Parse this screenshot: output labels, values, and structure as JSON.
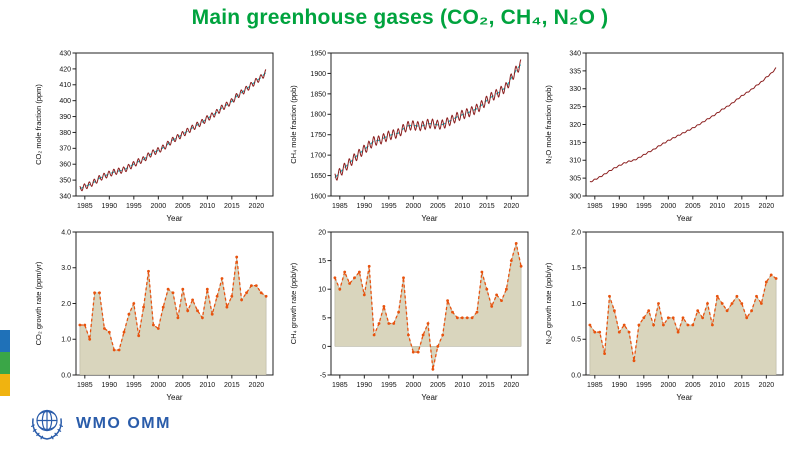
{
  "title": "Main greenhouse gases (CO₂, CH₄, N₂O )",
  "colors": {
    "title_green": "#00a33e",
    "wmo_blue": "#2a5caa",
    "mole_line_red": "#8b1f1f",
    "trend_cyan": "#1ab8c4",
    "growth_line_orange": "#e8520d",
    "growth_fill_khaki": "#d9d5bd"
  },
  "accent_bar": {
    "colors": [
      "#1f71b8",
      "#3aa647",
      "#f0b310"
    ]
  },
  "footer": {
    "logo_text": "WMO OMM"
  },
  "chart_data": [
    {
      "type": "line",
      "name": "co2-mole-fraction",
      "style": "monthly-with-trend",
      "title": "",
      "xlabel": "Year",
      "ylabel": "CO₂ mole fraction (ppm)",
      "xlim": [
        1983.2,
        2023.4
      ],
      "ylim": [
        340,
        430
      ],
      "xticks": [
        1985,
        1990,
        1995,
        2000,
        2005,
        2010,
        2015,
        2020
      ],
      "yticks": [
        340,
        350,
        360,
        370,
        380,
        390,
        400,
        410,
        420,
        430
      ],
      "ydecimals": 0,
      "seasonal_amplitude": 1.8,
      "line_color": "#8b1f1f",
      "trend_color": "#1ab8c4",
      "x": [
        1984,
        1985,
        1986,
        1987,
        1988,
        1989,
        1990,
        1991,
        1992,
        1993,
        1994,
        1995,
        1996,
        1997,
        1998,
        1999,
        2000,
        2001,
        2002,
        2003,
        2004,
        2005,
        2006,
        2007,
        2008,
        2009,
        2010,
        2011,
        2012,
        2013,
        2014,
        2015,
        2016,
        2017,
        2018,
        2019,
        2020,
        2021,
        2022
      ],
      "values": [
        344.6,
        345.9,
        347.2,
        348.9,
        351.2,
        352.6,
        353.9,
        355.1,
        355.8,
        356.5,
        358.2,
        360.0,
        361.8,
        363.0,
        365.5,
        367.4,
        368.7,
        370.4,
        372.8,
        375.3,
        377.0,
        378.9,
        381.0,
        382.9,
        384.8,
        386.5,
        388.9,
        390.6,
        392.8,
        395.5,
        397.4,
        399.6,
        402.9,
        405.1,
        407.4,
        409.9,
        412.4,
        414.7,
        417.9
      ]
    },
    {
      "type": "line",
      "name": "ch4-mole-fraction",
      "style": "monthly-with-trend",
      "title": "",
      "xlabel": "Year",
      "ylabel": "CH₄ mole fraction (ppb)",
      "xlim": [
        1983.2,
        2023.4
      ],
      "ylim": [
        1600,
        1950
      ],
      "xticks": [
        1985,
        1990,
        1995,
        2000,
        2005,
        2010,
        2015,
        2020
      ],
      "yticks": [
        1600,
        1650,
        1700,
        1750,
        1800,
        1850,
        1900,
        1950
      ],
      "ydecimals": 0,
      "seasonal_amplitude": 11,
      "line_color": "#8b1f1f",
      "trend_color": "#1ab8c4",
      "x": [
        1984,
        1985,
        1986,
        1987,
        1988,
        1989,
        1990,
        1991,
        1992,
        1993,
        1994,
        1995,
        1996,
        1997,
        1998,
        1999,
        2000,
        2001,
        2002,
        2003,
        2004,
        2005,
        2006,
        2007,
        2008,
        2009,
        2010,
        2011,
        2012,
        2013,
        2014,
        2015,
        2016,
        2017,
        2018,
        2019,
        2020,
        2021,
        2022
      ],
      "values": [
        1645,
        1657,
        1670,
        1681,
        1693,
        1704,
        1714,
        1724,
        1735,
        1736,
        1742,
        1748,
        1751,
        1754,
        1765,
        1772,
        1773,
        1771,
        1772,
        1777,
        1777,
        1774,
        1775,
        1781,
        1787,
        1794,
        1799,
        1803,
        1808,
        1814,
        1823,
        1834,
        1843,
        1850,
        1858,
        1867,
        1889,
        1908,
        1923
      ]
    },
    {
      "type": "line",
      "name": "n2o-mole-fraction",
      "style": "monthly-with-trend",
      "title": "",
      "xlabel": "Year",
      "ylabel": "N₂O mole fraction (ppb)",
      "xlim": [
        1983.2,
        2023.4
      ],
      "ylim": [
        300,
        340
      ],
      "xticks": [
        1985,
        1990,
        1995,
        2000,
        2005,
        2010,
        2015,
        2020
      ],
      "yticks": [
        300,
        305,
        310,
        315,
        320,
        325,
        330,
        335,
        340
      ],
      "ydecimals": 0,
      "seasonal_amplitude": 0.15,
      "line_color": "#8b1f1f",
      "trend_color": null,
      "x": [
        1984,
        1985,
        1986,
        1987,
        1988,
        1989,
        1990,
        1991,
        1992,
        1993,
        1994,
        1995,
        1996,
        1997,
        1998,
        1999,
        2000,
        2001,
        2002,
        2003,
        2004,
        2005,
        2006,
        2007,
        2008,
        2009,
        2010,
        2011,
        2012,
        2013,
        2014,
        2015,
        2016,
        2017,
        2018,
        2019,
        2020,
        2021,
        2022
      ],
      "values": [
        303.9,
        304.6,
        305.3,
        306.1,
        307.0,
        307.8,
        308.5,
        309.2,
        309.7,
        310.0,
        310.7,
        311.5,
        312.3,
        313.0,
        313.9,
        314.7,
        315.5,
        316.2,
        316.9,
        317.6,
        318.3,
        319.0,
        319.8,
        320.6,
        321.5,
        322.3,
        323.2,
        324.2,
        325.0,
        325.9,
        327.0,
        328.0,
        328.9,
        329.8,
        330.9,
        331.9,
        333.2,
        334.3,
        335.8
      ]
    },
    {
      "type": "area",
      "name": "co2-growth-rate",
      "style": "growth",
      "title": "",
      "xlabel": "Year",
      "ylabel": "CO₂ growth rate (ppm/yr)",
      "xlim": [
        1983.2,
        2023.4
      ],
      "ylim": [
        0,
        4
      ],
      "xticks": [
        1985,
        1990,
        1995,
        2000,
        2005,
        2010,
        2015,
        2020
      ],
      "yticks": [
        0,
        1,
        2,
        3,
        4
      ],
      "ydecimals": 1,
      "baseline": 0,
      "line_color": "#e8520d",
      "fill_color": "#d9d5bd",
      "x": [
        1984,
        1985,
        1986,
        1987,
        1988,
        1989,
        1990,
        1991,
        1992,
        1993,
        1994,
        1995,
        1996,
        1997,
        1998,
        1999,
        2000,
        2001,
        2002,
        2003,
        2004,
        2005,
        2006,
        2007,
        2008,
        2009,
        2010,
        2011,
        2012,
        2013,
        2014,
        2015,
        2016,
        2017,
        2018,
        2019,
        2020,
        2021,
        2022
      ],
      "values": [
        1.4,
        1.4,
        1.0,
        2.3,
        2.3,
        1.3,
        1.2,
        0.7,
        0.7,
        1.2,
        1.7,
        2.0,
        1.1,
        1.9,
        2.9,
        1.4,
        1.3,
        1.9,
        2.4,
        2.3,
        1.6,
        2.4,
        1.8,
        2.1,
        1.8,
        1.6,
        2.4,
        1.7,
        2.2,
        2.7,
        1.9,
        2.2,
        3.3,
        2.1,
        2.3,
        2.5,
        2.5,
        2.3,
        2.2
      ]
    },
    {
      "type": "area",
      "name": "ch4-growth-rate",
      "style": "growth",
      "title": "",
      "xlabel": "Year",
      "ylabel": "CH₄ growth rate (ppb/yr)",
      "xlim": [
        1983.2,
        2023.4
      ],
      "ylim": [
        -5,
        20
      ],
      "xticks": [
        1985,
        1990,
        1995,
        2000,
        2005,
        2010,
        2015,
        2020
      ],
      "yticks": [
        -5,
        0,
        5,
        10,
        15,
        20
      ],
      "ydecimals": 0,
      "baseline": 0,
      "line_color": "#e8520d",
      "fill_color": "#d9d5bd",
      "x": [
        1984,
        1985,
        1986,
        1987,
        1988,
        1989,
        1990,
        1991,
        1992,
        1993,
        1994,
        1995,
        1996,
        1997,
        1998,
        1999,
        2000,
        2001,
        2002,
        2003,
        2004,
        2005,
        2006,
        2007,
        2008,
        2009,
        2010,
        2011,
        2012,
        2013,
        2014,
        2015,
        2016,
        2017,
        2018,
        2019,
        2020,
        2021,
        2022
      ],
      "values": [
        12,
        10,
        13,
        11,
        12,
        13,
        9,
        14,
        2,
        4,
        7,
        4,
        4,
        6,
        12,
        2,
        -1,
        -1,
        2,
        4,
        -4,
        0,
        2,
        8,
        6,
        5,
        5,
        5,
        5,
        6,
        13,
        10,
        7,
        9,
        8,
        10,
        15,
        18,
        14
      ]
    },
    {
      "type": "area",
      "name": "n2o-growth-rate",
      "style": "growth",
      "title": "",
      "xlabel": "Year",
      "ylabel": "N₂O growth rate (ppb/yr)",
      "xlim": [
        1983.2,
        2023.4
      ],
      "ylim": [
        0,
        2
      ],
      "xticks": [
        1985,
        1990,
        1995,
        2000,
        2005,
        2010,
        2015,
        2020
      ],
      "yticks": [
        0,
        0.5,
        1,
        1.5,
        2
      ],
      "ydecimals": 1,
      "baseline": 0,
      "line_color": "#e8520d",
      "fill_color": "#d9d5bd",
      "x": [
        1984,
        1985,
        1986,
        1987,
        1988,
        1989,
        1990,
        1991,
        1992,
        1993,
        1994,
        1995,
        1996,
        1997,
        1998,
        1999,
        2000,
        2001,
        2002,
        2003,
        2004,
        2005,
        2006,
        2007,
        2008,
        2009,
        2010,
        2011,
        2012,
        2013,
        2014,
        2015,
        2016,
        2017,
        2018,
        2019,
        2020,
        2021,
        2022
      ],
      "values": [
        0.7,
        0.6,
        0.6,
        0.3,
        1.1,
        0.9,
        0.6,
        0.7,
        0.6,
        0.2,
        0.7,
        0.8,
        0.9,
        0.7,
        1.0,
        0.7,
        0.8,
        0.8,
        0.6,
        0.8,
        0.7,
        0.7,
        0.9,
        0.8,
        1.0,
        0.7,
        1.1,
        1.0,
        0.9,
        1.0,
        1.1,
        1.0,
        0.8,
        0.9,
        1.1,
        1.0,
        1.3,
        1.4,
        1.35
      ]
    }
  ]
}
